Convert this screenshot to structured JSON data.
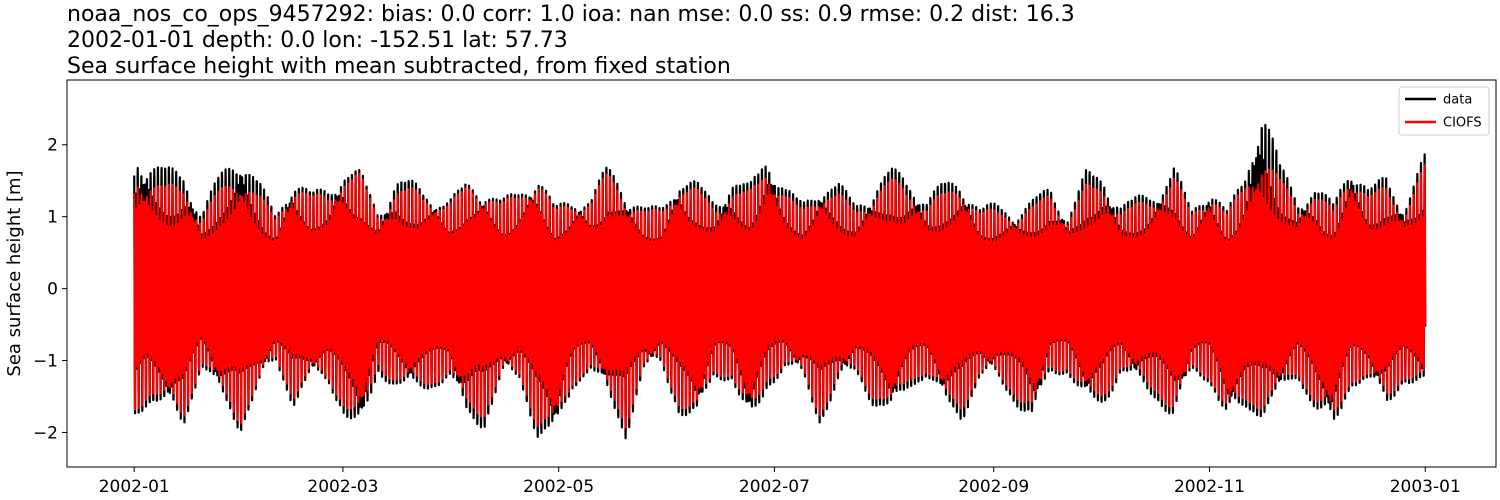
{
  "titles": [
    "noaa_nos_co_ops_9457292: bias: 0.0  corr: 1.0  ioa: nan  mse: 0.0  ss: 0.9  rmse: 0.2  dist: 16.3",
    "2002-01-01 depth: 0.0 lon: -152.51 lat: 57.73",
    "Sea surface height with mean subtracted, from fixed station"
  ],
  "chart_data": {
    "type": "line",
    "title": "Sea surface height with mean subtracted, from fixed station",
    "xlabel": "",
    "ylabel": "Sea surface height [m]",
    "xlim": [
      "2001-12-13",
      "2003-01-21"
    ],
    "ylim": [
      -2.48,
      2.9
    ],
    "x_ticks": [
      "2002-01",
      "2002-03",
      "2002-05",
      "2002-07",
      "2002-09",
      "2002-11",
      "2003-01"
    ],
    "y_ticks": [
      -2,
      -1,
      0,
      1,
      2
    ],
    "grid": false,
    "legend_position": "top-right",
    "x_start": "2002-01-01",
    "x_end": "2003-01-01",
    "sampling": "hourly",
    "series": [
      {
        "name": "data",
        "color": "#000000",
        "envelope_dates": [
          "2002-01-01",
          "2002-01-05",
          "2002-01-10",
          "2002-01-15",
          "2002-01-20",
          "2002-01-25",
          "2002-01-31",
          "2002-02-05",
          "2002-02-10",
          "2002-02-15",
          "2002-02-20",
          "2002-02-25",
          "2002-03-01",
          "2002-03-06",
          "2002-03-11",
          "2002-03-16",
          "2002-03-21",
          "2002-03-26",
          "2002-03-31",
          "2002-04-05",
          "2002-04-10",
          "2002-04-15",
          "2002-04-20",
          "2002-04-25",
          "2002-04-30",
          "2002-05-05",
          "2002-05-10",
          "2002-05-15",
          "2002-05-20",
          "2002-05-25",
          "2002-05-30",
          "2002-06-04",
          "2002-06-09",
          "2002-06-14",
          "2002-06-19",
          "2002-06-24",
          "2002-06-29",
          "2002-07-04",
          "2002-07-09",
          "2002-07-14",
          "2002-07-19",
          "2002-07-24",
          "2002-07-29",
          "2002-08-03",
          "2002-08-08",
          "2002-08-13",
          "2002-08-18",
          "2002-08-23",
          "2002-08-28",
          "2002-09-02",
          "2002-09-07",
          "2002-09-12",
          "2002-09-17",
          "2002-09-22",
          "2002-09-27",
          "2002-10-02",
          "2002-10-07",
          "2002-10-12",
          "2002-10-17",
          "2002-10-22",
          "2002-10-27",
          "2002-11-01",
          "2002-11-06",
          "2002-11-11",
          "2002-11-16",
          "2002-11-21",
          "2002-11-26",
          "2002-12-01",
          "2002-12-06",
          "2002-12-11",
          "2002-12-16",
          "2002-12-21",
          "2002-12-26",
          "2003-01-01"
        ],
        "envelope_max": [
          1.9,
          1.85,
          1.7,
          1.65,
          1.1,
          1.6,
          1.95,
          1.55,
          1.05,
          1.6,
          1.35,
          1.45,
          1.7,
          1.65,
          1.1,
          1.55,
          1.5,
          1.35,
          1.25,
          1.5,
          1.45,
          1.25,
          1.4,
          1.65,
          1.15,
          1.3,
          1.3,
          1.75,
          1.4,
          1.15,
          1.15,
          1.6,
          1.5,
          1.25,
          1.55,
          1.45,
          1.95,
          1.45,
          1.2,
          1.5,
          1.5,
          1.2,
          1.45,
          1.7,
          1.55,
          1.3,
          1.5,
          1.55,
          1.15,
          1.2,
          1.1,
          1.25,
          1.45,
          1.05,
          1.65,
          1.6,
          1.2,
          1.3,
          1.4,
          1.75,
          1.1,
          1.5,
          1.1,
          1.6,
          2.65,
          1.75,
          1.3,
          1.45,
          1.2,
          1.85,
          1.4,
          1.6,
          1.2,
          1.9
        ],
        "envelope_min": [
          -1.85,
          -1.6,
          -1.75,
          -1.95,
          -1.1,
          -1.55,
          -2.0,
          -1.45,
          -1.05,
          -1.65,
          -1.3,
          -1.35,
          -1.75,
          -2.15,
          -1.2,
          -1.4,
          -1.5,
          -1.4,
          -1.3,
          -1.85,
          -1.95,
          -1.3,
          -1.3,
          -2.1,
          -2.2,
          -1.4,
          -1.15,
          -1.6,
          -2.1,
          -1.2,
          -1.1,
          -1.75,
          -1.95,
          -1.25,
          -1.3,
          -2.05,
          -1.4,
          -1.15,
          -1.3,
          -1.9,
          -1.4,
          -1.2,
          -1.65,
          -1.85,
          -1.4,
          -1.25,
          -1.7,
          -1.85,
          -1.3,
          -1.3,
          -1.6,
          -1.95,
          -1.2,
          -1.2,
          -1.7,
          -1.65,
          -1.2,
          -1.4,
          -1.55,
          -1.9,
          -1.2,
          -1.3,
          -1.95,
          -1.7,
          -1.8,
          -1.55,
          -1.25,
          -1.75,
          -2.1,
          -1.35,
          -1.35,
          -1.7,
          -1.3,
          -1.5
        ]
      },
      {
        "name": "CIOFS",
        "color": "#ff0000",
        "envelope_dates": [
          "2002-01-01",
          "2002-01-05",
          "2002-01-10",
          "2002-01-15",
          "2002-01-20",
          "2002-01-25",
          "2002-01-31",
          "2002-02-05",
          "2002-02-10",
          "2002-02-15",
          "2002-02-20",
          "2002-02-25",
          "2002-03-01",
          "2002-03-06",
          "2002-03-11",
          "2002-03-16",
          "2002-03-21",
          "2002-03-26",
          "2002-03-31",
          "2002-04-05",
          "2002-04-10",
          "2002-04-15",
          "2002-04-20",
          "2002-04-25",
          "2002-04-30",
          "2002-05-05",
          "2002-05-10",
          "2002-05-15",
          "2002-05-20",
          "2002-05-25",
          "2002-05-30",
          "2002-06-04",
          "2002-06-09",
          "2002-06-14",
          "2002-06-19",
          "2002-06-24",
          "2002-06-29",
          "2002-07-04",
          "2002-07-09",
          "2002-07-14",
          "2002-07-19",
          "2002-07-24",
          "2002-07-29",
          "2002-08-03",
          "2002-08-08",
          "2002-08-13",
          "2002-08-18",
          "2002-08-23",
          "2002-08-28",
          "2002-09-02",
          "2002-09-07",
          "2002-09-12",
          "2002-09-17",
          "2002-09-22",
          "2002-09-27",
          "2002-10-02",
          "2002-10-07",
          "2002-10-12",
          "2002-10-17",
          "2002-10-22",
          "2002-10-27",
          "2002-11-01",
          "2002-11-06",
          "2002-11-11",
          "2002-11-16",
          "2002-11-21",
          "2002-11-26",
          "2002-12-01",
          "2002-12-06",
          "2002-12-11",
          "2002-12-16",
          "2002-12-21",
          "2002-12-26",
          "2003-01-01"
        ],
        "envelope_max": [
          1.6,
          1.55,
          1.45,
          1.45,
          1.0,
          1.4,
          1.6,
          1.35,
          1.0,
          1.5,
          1.3,
          1.35,
          1.6,
          1.6,
          1.05,
          1.4,
          1.4,
          1.3,
          1.2,
          1.45,
          1.4,
          1.2,
          1.35,
          1.6,
          1.1,
          1.25,
          1.25,
          1.65,
          1.3,
          1.1,
          1.1,
          1.5,
          1.4,
          1.15,
          1.4,
          1.35,
          1.75,
          1.35,
          1.1,
          1.4,
          1.35,
          1.1,
          1.35,
          1.55,
          1.4,
          1.2,
          1.35,
          1.45,
          1.1,
          1.1,
          1.05,
          1.15,
          1.35,
          1.0,
          1.45,
          1.45,
          1.1,
          1.2,
          1.3,
          1.6,
          1.05,
          1.4,
          1.05,
          1.5,
          1.85,
          1.55,
          1.2,
          1.35,
          1.1,
          1.7,
          1.3,
          1.45,
          1.1,
          1.75
        ],
        "envelope_min": [
          -1.8,
          -1.5,
          -1.65,
          -1.85,
          -1.05,
          -1.45,
          -1.9,
          -1.4,
          -1.0,
          -1.55,
          -1.25,
          -1.3,
          -1.65,
          -1.95,
          -1.1,
          -1.35,
          -1.4,
          -1.35,
          -1.25,
          -1.7,
          -1.8,
          -1.25,
          -1.25,
          -1.95,
          -2.05,
          -1.35,
          -1.1,
          -1.5,
          -1.95,
          -1.15,
          -1.05,
          -1.65,
          -1.85,
          -1.2,
          -1.25,
          -1.9,
          -1.3,
          -1.1,
          -1.25,
          -1.8,
          -1.3,
          -1.15,
          -1.55,
          -1.75,
          -1.3,
          -1.2,
          -1.6,
          -1.7,
          -1.25,
          -1.25,
          -1.5,
          -1.8,
          -1.15,
          -1.15,
          -1.6,
          -1.55,
          -1.15,
          -1.3,
          -1.45,
          -1.8,
          -1.15,
          -1.25,
          -1.85,
          -1.6,
          -1.7,
          -1.45,
          -1.2,
          -1.65,
          -1.95,
          -1.3,
          -1.3,
          -1.6,
          -1.25,
          -1.4
        ]
      }
    ]
  }
}
